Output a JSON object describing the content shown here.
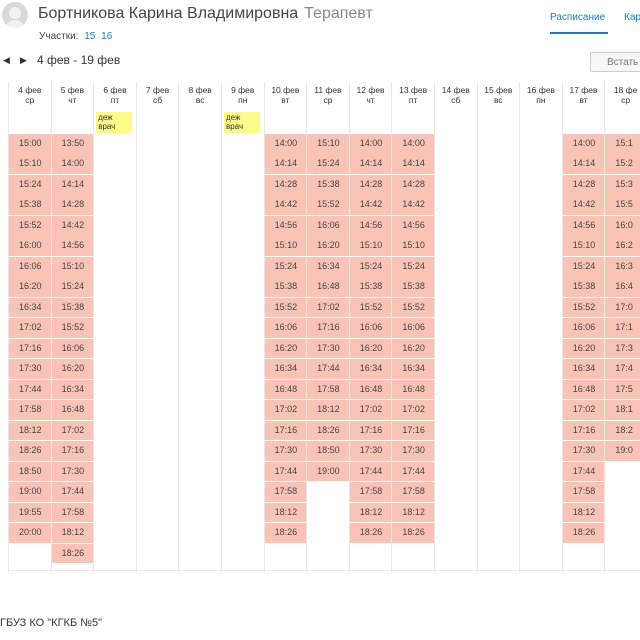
{
  "doctor": {
    "name": "Бортникова Карина Владимировна",
    "role": "Терапевт"
  },
  "areas": {
    "label": "Участки:",
    "items": [
      "15",
      "16"
    ]
  },
  "tabs": [
    {
      "label": "Расписание",
      "active": true
    },
    {
      "label": "Кар"
    }
  ],
  "nav": {
    "date_range": "4 фев - 19 фев",
    "insert_label": "Встать"
  },
  "colors": {
    "slot": "#f9c3b5",
    "note": "#fbfb8a",
    "link": "#1e7ab8"
  },
  "days": [
    {
      "date": "4 фев",
      "weekday": "ср",
      "slots": [
        "15:00",
        "15:10",
        "15:24",
        "15:38",
        "15:52",
        "16:00",
        "16:06",
        "16:20",
        "16:34",
        "17:02",
        "17:16",
        "17:30",
        "17:44",
        "17:58",
        "18:12",
        "18:26",
        "18:50",
        "19:00",
        "19:55",
        "20:00"
      ]
    },
    {
      "date": "5 фев",
      "weekday": "чт",
      "slots": [
        "13:50",
        "14:00",
        "14:14",
        "14:28",
        "14:42",
        "14:56",
        "15:10",
        "15:24",
        "15:38",
        "15:52",
        "16:06",
        "16:20",
        "16:34",
        "16:48",
        "17:02",
        "17:16",
        "17:30",
        "17:44",
        "17:58",
        "18:12",
        "18:26"
      ]
    },
    {
      "date": "6 фев",
      "weekday": "пт",
      "note": "деж врач",
      "slots": []
    },
    {
      "date": "7 фев",
      "weekday": "сб",
      "slots": []
    },
    {
      "date": "8 фев",
      "weekday": "вс",
      "slots": []
    },
    {
      "date": "9 фев",
      "weekday": "пн",
      "note": "деж врач",
      "slots": []
    },
    {
      "date": "10 фев",
      "weekday": "вт",
      "slots": [
        "14:00",
        "14:14",
        "14:28",
        "14:42",
        "14:56",
        "15:10",
        "15:24",
        "15:38",
        "15:52",
        "16:06",
        "16:20",
        "16:34",
        "16:48",
        "17:02",
        "17:16",
        "17:30",
        "17:44",
        "17:58",
        "18:12",
        "18:26"
      ]
    },
    {
      "date": "11 фев",
      "weekday": "ср",
      "slots": [
        "15:10",
        "15:24",
        "15:38",
        "15:52",
        "16:06",
        "16:20",
        "16:34",
        "16:48",
        "17:02",
        "17:16",
        "17:30",
        "17:44",
        "17:58",
        "18:12",
        "18:26",
        "18:50",
        "19:00"
      ]
    },
    {
      "date": "12 фев",
      "weekday": "чт",
      "slots": [
        "14:00",
        "14:14",
        "14:28",
        "14:42",
        "14:56",
        "15:10",
        "15:24",
        "15:38",
        "15:52",
        "16:06",
        "16:20",
        "16:34",
        "16:48",
        "17:02",
        "17:16",
        "17:30",
        "17:44",
        "17:58",
        "18:12",
        "18:26"
      ]
    },
    {
      "date": "13 фев",
      "weekday": "пт",
      "slots": [
        "14:00",
        "14:14",
        "14:28",
        "14:42",
        "14:56",
        "15:10",
        "15:24",
        "15:38",
        "15:52",
        "16:06",
        "16:20",
        "16:34",
        "16:48",
        "17:02",
        "17:16",
        "17:30",
        "17:44",
        "17:58",
        "18:12",
        "18:26"
      ]
    },
    {
      "date": "14 фев",
      "weekday": "сб",
      "slots": []
    },
    {
      "date": "15 фев",
      "weekday": "вс",
      "slots": []
    },
    {
      "date": "16 фев",
      "weekday": "пн",
      "slots": []
    },
    {
      "date": "17 фев",
      "weekday": "вт",
      "slots": [
        "14:00",
        "14:14",
        "14:28",
        "14:42",
        "14:56",
        "15:10",
        "15:24",
        "15:38",
        "15:52",
        "16:06",
        "16:20",
        "16:34",
        "16:48",
        "17:02",
        "17:16",
        "17:30",
        "17:44",
        "17:58",
        "18:12",
        "18:26"
      ]
    },
    {
      "date": "18 фе",
      "weekday": "ср",
      "slots": [
        "15:1",
        "15:2",
        "15:3",
        "15:5",
        "16:0",
        "16:2",
        "16:3",
        "16:4",
        "17:0",
        "17:1",
        "17:3",
        "17:4",
        "17:5",
        "18:1",
        "18:2",
        "19:0"
      ]
    }
  ],
  "footer": "ГБУЗ КО \"КГКБ №5\""
}
